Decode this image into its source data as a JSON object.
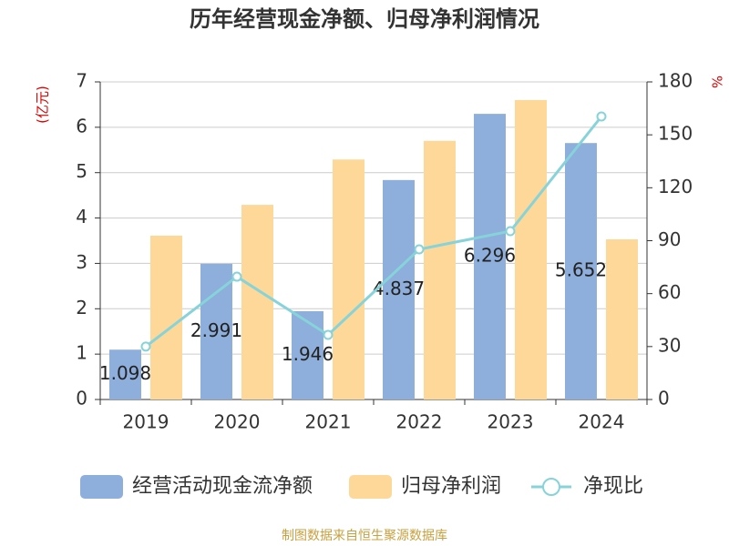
{
  "chart_data": {
    "type": "combo",
    "title": "历年经营现金净额、归母净利润情况",
    "y_label": "(亿元)",
    "y2_label": "%",
    "categories": [
      "2019",
      "2020",
      "2021",
      "2022",
      "2023",
      "2024"
    ],
    "series": [
      {
        "name": "经营活动现金流净额",
        "type": "bar",
        "color": "#8eaedb",
        "show_labels": true,
        "values": [
          1.098,
          2.991,
          1.946,
          4.837,
          6.296,
          5.652
        ]
      },
      {
        "name": "归母净利润",
        "type": "bar",
        "color": "#fdd898",
        "show_labels": false,
        "values": [
          3.61,
          4.29,
          5.29,
          5.7,
          6.6,
          3.53
        ]
      },
      {
        "name": "净现比",
        "type": "line",
        "axis": "y2",
        "color": "#86d3d9",
        "show_labels": false,
        "values": [
          30,
          69.6,
          36.6,
          85.1,
          95.4,
          160.4
        ]
      }
    ],
    "ylim": [
      0,
      7
    ],
    "yticks": [
      0,
      1,
      2,
      3,
      4,
      5,
      6,
      7
    ],
    "y2lim": [
      0,
      180
    ],
    "y2ticks": [
      0,
      30,
      60,
      90,
      120,
      150,
      180
    ],
    "grid": true,
    "legend": "bottom",
    "source": "制图数据来自恒生聚源数据库"
  }
}
